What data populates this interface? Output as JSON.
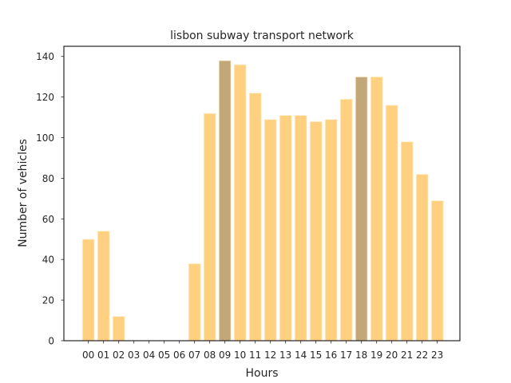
{
  "chart_data": {
    "type": "bar",
    "title": "lisbon subway transport network",
    "xlabel": "Hours",
    "ylabel": "Number of vehicles",
    "categories": [
      "00",
      "01",
      "02",
      "03",
      "04",
      "05",
      "06",
      "07",
      "08",
      "09",
      "10",
      "11",
      "12",
      "13",
      "14",
      "15",
      "16",
      "17",
      "18",
      "19",
      "20",
      "21",
      "22",
      "23"
    ],
    "values": [
      50,
      54,
      12,
      0,
      0,
      0,
      0,
      38,
      112,
      138,
      136,
      122,
      109,
      111,
      111,
      108,
      109,
      119,
      130,
      130,
      116,
      98,
      82,
      69
    ],
    "highlighted_categories": [
      "09",
      "18"
    ],
    "ylim": [
      0,
      145
    ],
    "yticks": [
      0,
      20,
      40,
      60,
      80,
      100,
      120,
      140
    ],
    "grid": false,
    "colors": {
      "bar": "#ffd080",
      "bar_highlight": "#c2a878",
      "bar_edge": "#fff5e0",
      "axis": "#262626",
      "text": "#262626"
    }
  }
}
